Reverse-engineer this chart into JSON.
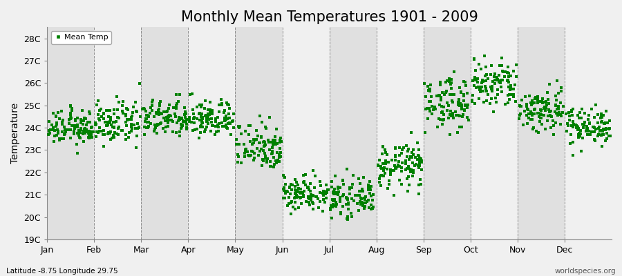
{
  "title": "Monthly Mean Temperatures 1901 - 2009",
  "ylabel": "Temperature",
  "bottom_left_text": "Latitude -8.75 Longitude 29.75",
  "bottom_right_text": "worldspecies.org",
  "legend_label": "Mean Temp",
  "marker_color": "#008000",
  "marker": "s",
  "marker_size": 3,
  "ylim_min": 19,
  "ylim_max": 28.5,
  "yticks": [
    19,
    20,
    21,
    22,
    23,
    24,
    25,
    26,
    27,
    28
  ],
  "ytick_labels": [
    "19C",
    "20C",
    "21C",
    "22C",
    "23C",
    "24C",
    "25C",
    "26C",
    "27C",
    "28C"
  ],
  "months": [
    "Jan",
    "Feb",
    "Mar",
    "Apr",
    "May",
    "Jun",
    "Jul",
    "Aug",
    "Sep",
    "Oct",
    "Nov",
    "Dec"
  ],
  "monthly_means": [
    24.0,
    24.2,
    24.4,
    24.4,
    23.2,
    21.1,
    20.85,
    22.3,
    25.1,
    25.9,
    24.8,
    24.1
  ],
  "monthly_stds": [
    0.38,
    0.45,
    0.42,
    0.42,
    0.55,
    0.4,
    0.38,
    0.5,
    0.58,
    0.58,
    0.52,
    0.42
  ],
  "n_years": 109,
  "background_color": "#f0f0f0",
  "plot_bg_color": "#f0f0f0",
  "alt_band_color": "#e0e0e0",
  "grid_line_color": "#666666",
  "title_fontsize": 15,
  "label_fontsize": 10,
  "tick_fontsize": 9
}
